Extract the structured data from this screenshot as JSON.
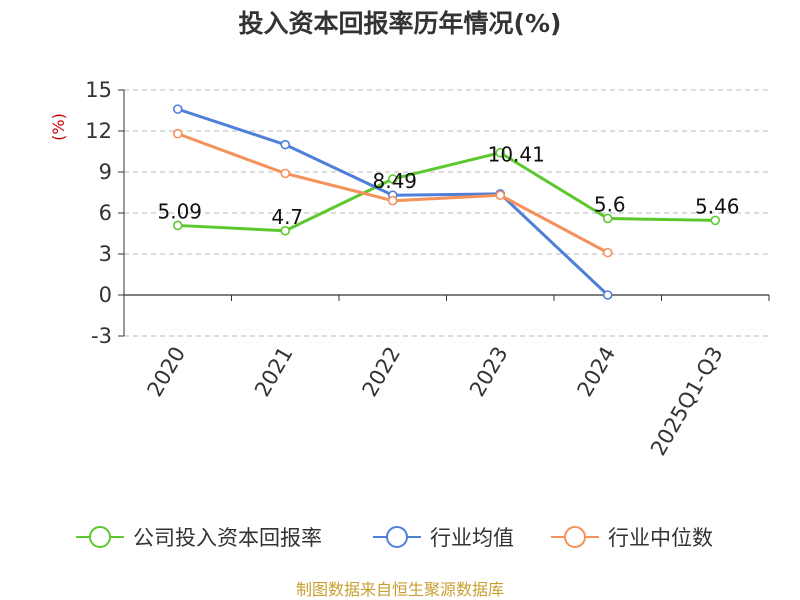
{
  "chart_data": {
    "type": "line",
    "title": "投入资本回报率历年情况(%)",
    "ylabel": "(%)",
    "xlabel": "",
    "categories": [
      "2020",
      "2021",
      "2022",
      "2023",
      "2024",
      "2025Q1-Q3"
    ],
    "y_ticks": [
      "15",
      "12",
      "9",
      "6",
      "3",
      "0",
      "-3"
    ],
    "ylim": [
      -3,
      15
    ],
    "grid": true,
    "legend_position": "bottom",
    "series": [
      {
        "name": "公司投入资本回报率",
        "color": "#5cc82e",
        "values": [
          5.09,
          4.7,
          8.49,
          10.41,
          5.6,
          5.46
        ],
        "labels": [
          "5.09",
          "4.7",
          "8.49",
          "10.41",
          "5.6",
          "5.46"
        ]
      },
      {
        "name": "行业均值",
        "color": "#4e7fd9",
        "values": [
          13.6,
          11.0,
          7.3,
          7.4,
          0.0,
          null
        ],
        "labels": []
      },
      {
        "name": "行业中位数",
        "color": "#f5915a",
        "values": [
          11.8,
          8.9,
          6.9,
          7.3,
          3.1,
          null
        ],
        "labels": []
      }
    ],
    "source": "制图数据来自恒生聚源数据库"
  }
}
